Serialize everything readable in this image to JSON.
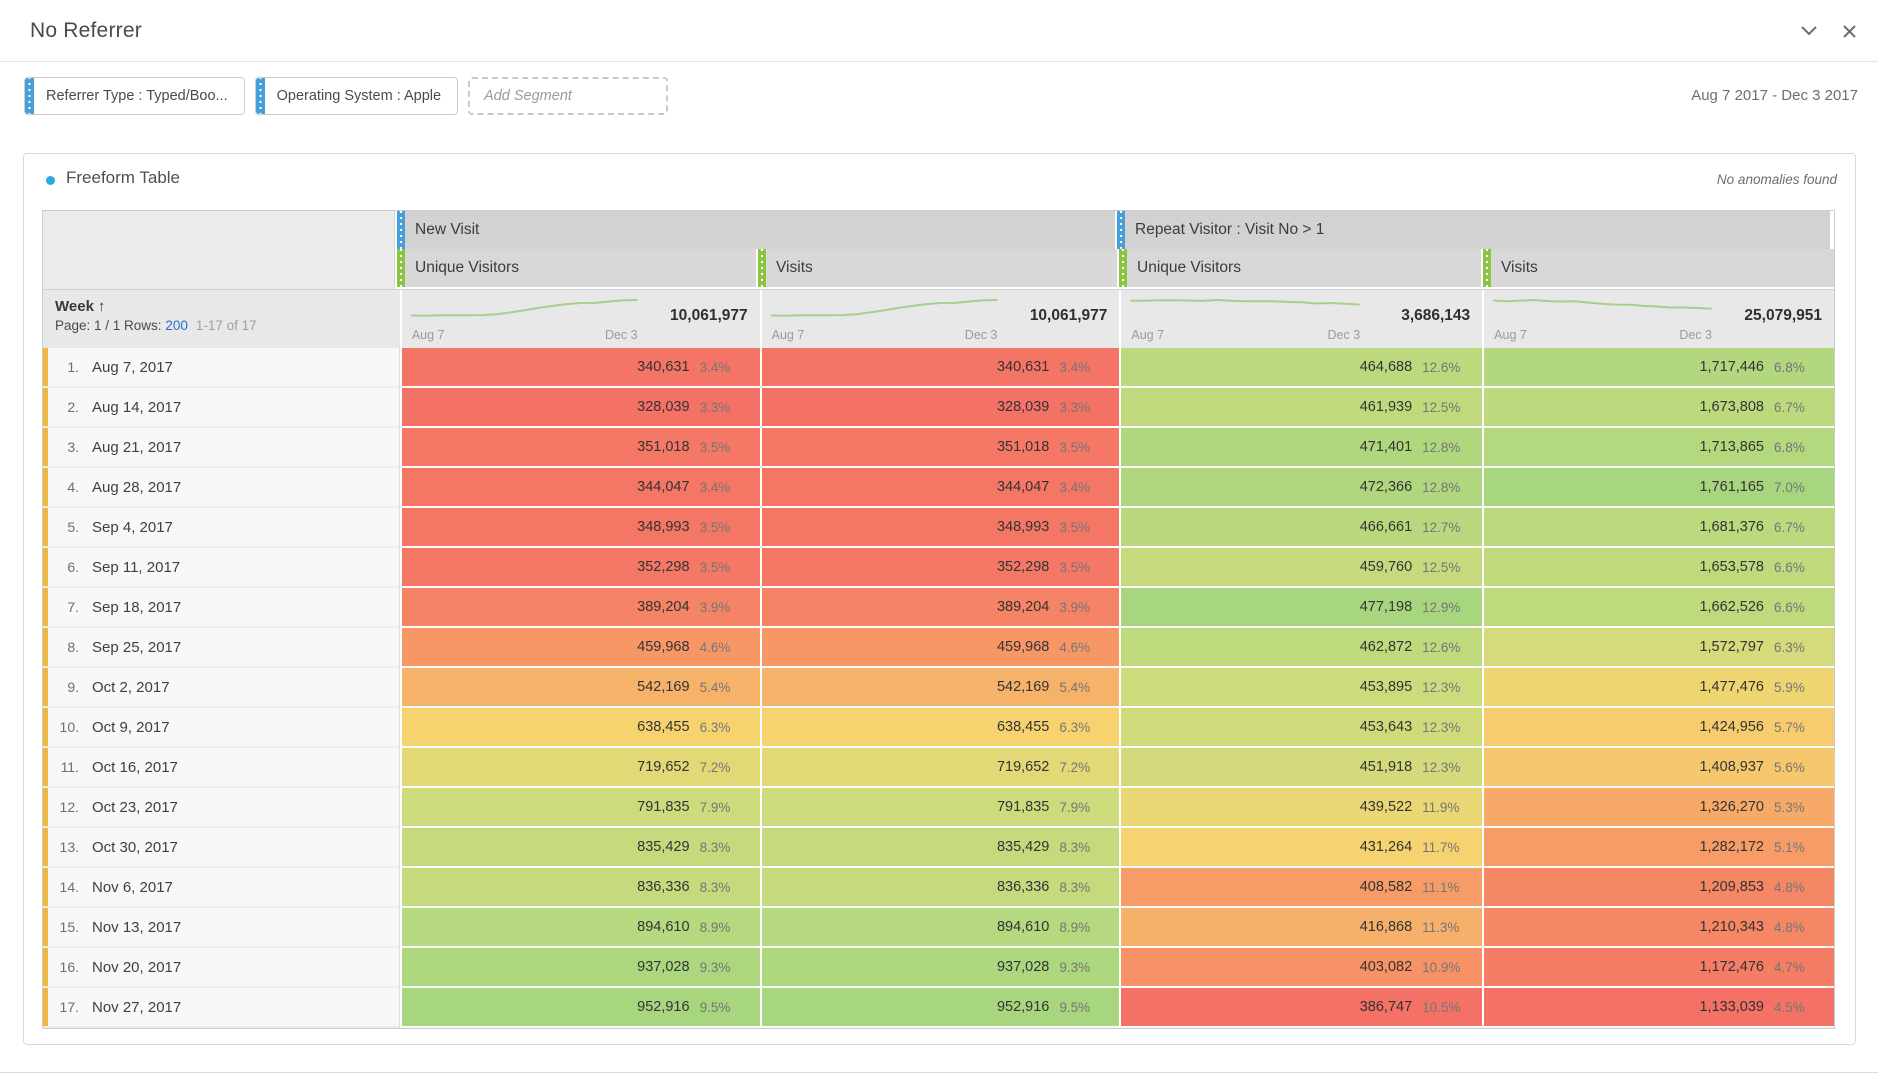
{
  "window": {
    "title": "No Referrer",
    "date_range": "Aug 7 2017 - Dec 3 2017"
  },
  "segments": {
    "chips": [
      {
        "label": "Referrer Type : Typed/Boo..."
      },
      {
        "label": "Operating System : Apple"
      }
    ],
    "add_segment_placeholder": "Add Segment"
  },
  "panel": {
    "title": "Freeform Table",
    "anomalies_note": "No anomalies found"
  },
  "table": {
    "row_header": {
      "dimension": "Week",
      "sort_arrow": "↑",
      "page_prefix": "Page: 1 / 1 Rows:",
      "rows_value": "200",
      "range": "1-17 of 17"
    },
    "groups": [
      {
        "label": "New Visit",
        "span": 2
      },
      {
        "label": "Repeat Visitor : Visit No > 1",
        "span": 2
      }
    ],
    "columns": [
      {
        "label": "Unique Visitors",
        "total": "10,061,977",
        "axis_start": "Aug 7",
        "axis_end": "Dec 3"
      },
      {
        "label": "Visits",
        "total": "10,061,977",
        "axis_start": "Aug 7",
        "axis_end": "Dec 3"
      },
      {
        "label": "Unique Visitors",
        "total": "3,686,143",
        "axis_start": "Aug 7",
        "axis_end": "Dec 3"
      },
      {
        "label": "Visits",
        "total": "25,079,951",
        "axis_start": "Aug 7",
        "axis_end": "Dec 3"
      }
    ],
    "rows": [
      {
        "index": "1.",
        "date": "Aug 7, 2017",
        "cells": [
          {
            "value": "340,631",
            "pct": "3.4%"
          },
          {
            "value": "340,631",
            "pct": "3.4%"
          },
          {
            "value": "464,688",
            "pct": "12.6%"
          },
          {
            "value": "1,717,446",
            "pct": "6.8%"
          }
        ]
      },
      {
        "index": "2.",
        "date": "Aug 14, 2017",
        "cells": [
          {
            "value": "328,039",
            "pct": "3.3%"
          },
          {
            "value": "328,039",
            "pct": "3.3%"
          },
          {
            "value": "461,939",
            "pct": "12.5%"
          },
          {
            "value": "1,673,808",
            "pct": "6.7%"
          }
        ]
      },
      {
        "index": "3.",
        "date": "Aug 21, 2017",
        "cells": [
          {
            "value": "351,018",
            "pct": "3.5%"
          },
          {
            "value": "351,018",
            "pct": "3.5%"
          },
          {
            "value": "471,401",
            "pct": "12.8%"
          },
          {
            "value": "1,713,865",
            "pct": "6.8%"
          }
        ]
      },
      {
        "index": "4.",
        "date": "Aug 28, 2017",
        "cells": [
          {
            "value": "344,047",
            "pct": "3.4%"
          },
          {
            "value": "344,047",
            "pct": "3.4%"
          },
          {
            "value": "472,366",
            "pct": "12.8%"
          },
          {
            "value": "1,761,165",
            "pct": "7.0%"
          }
        ]
      },
      {
        "index": "5.",
        "date": "Sep 4, 2017",
        "cells": [
          {
            "value": "348,993",
            "pct": "3.5%"
          },
          {
            "value": "348,993",
            "pct": "3.5%"
          },
          {
            "value": "466,661",
            "pct": "12.7%"
          },
          {
            "value": "1,681,376",
            "pct": "6.7%"
          }
        ]
      },
      {
        "index": "6.",
        "date": "Sep 11, 2017",
        "cells": [
          {
            "value": "352,298",
            "pct": "3.5%"
          },
          {
            "value": "352,298",
            "pct": "3.5%"
          },
          {
            "value": "459,760",
            "pct": "12.5%"
          },
          {
            "value": "1,653,578",
            "pct": "6.6%"
          }
        ]
      },
      {
        "index": "7.",
        "date": "Sep 18, 2017",
        "cells": [
          {
            "value": "389,204",
            "pct": "3.9%"
          },
          {
            "value": "389,204",
            "pct": "3.9%"
          },
          {
            "value": "477,198",
            "pct": "12.9%"
          },
          {
            "value": "1,662,526",
            "pct": "6.6%"
          }
        ]
      },
      {
        "index": "8.",
        "date": "Sep 25, 2017",
        "cells": [
          {
            "value": "459,968",
            "pct": "4.6%"
          },
          {
            "value": "459,968",
            "pct": "4.6%"
          },
          {
            "value": "462,872",
            "pct": "12.6%"
          },
          {
            "value": "1,572,797",
            "pct": "6.3%"
          }
        ]
      },
      {
        "index": "9.",
        "date": "Oct 2, 2017",
        "cells": [
          {
            "value": "542,169",
            "pct": "5.4%"
          },
          {
            "value": "542,169",
            "pct": "5.4%"
          },
          {
            "value": "453,895",
            "pct": "12.3%"
          },
          {
            "value": "1,477,476",
            "pct": "5.9%"
          }
        ]
      },
      {
        "index": "10.",
        "date": "Oct 9, 2017",
        "cells": [
          {
            "value": "638,455",
            "pct": "6.3%"
          },
          {
            "value": "638,455",
            "pct": "6.3%"
          },
          {
            "value": "453,643",
            "pct": "12.3%"
          },
          {
            "value": "1,424,956",
            "pct": "5.7%"
          }
        ]
      },
      {
        "index": "11.",
        "date": "Oct 16, 2017",
        "cells": [
          {
            "value": "719,652",
            "pct": "7.2%"
          },
          {
            "value": "719,652",
            "pct": "7.2%"
          },
          {
            "value": "451,918",
            "pct": "12.3%"
          },
          {
            "value": "1,408,937",
            "pct": "5.6%"
          }
        ]
      },
      {
        "index": "12.",
        "date": "Oct 23, 2017",
        "cells": [
          {
            "value": "791,835",
            "pct": "7.9%"
          },
          {
            "value": "791,835",
            "pct": "7.9%"
          },
          {
            "value": "439,522",
            "pct": "11.9%"
          },
          {
            "value": "1,326,270",
            "pct": "5.3%"
          }
        ]
      },
      {
        "index": "13.",
        "date": "Oct 30, 2017",
        "cells": [
          {
            "value": "835,429",
            "pct": "8.3%"
          },
          {
            "value": "835,429",
            "pct": "8.3%"
          },
          {
            "value": "431,264",
            "pct": "11.7%"
          },
          {
            "value": "1,282,172",
            "pct": "5.1%"
          }
        ]
      },
      {
        "index": "14.",
        "date": "Nov 6, 2017",
        "cells": [
          {
            "value": "836,336",
            "pct": "8.3%"
          },
          {
            "value": "836,336",
            "pct": "8.3%"
          },
          {
            "value": "408,582",
            "pct": "11.1%"
          },
          {
            "value": "1,209,853",
            "pct": "4.8%"
          }
        ]
      },
      {
        "index": "15.",
        "date": "Nov 13, 2017",
        "cells": [
          {
            "value": "894,610",
            "pct": "8.9%"
          },
          {
            "value": "894,610",
            "pct": "8.9%"
          },
          {
            "value": "416,868",
            "pct": "11.3%"
          },
          {
            "value": "1,210,343",
            "pct": "4.8%"
          }
        ]
      },
      {
        "index": "16.",
        "date": "Nov 20, 2017",
        "cells": [
          {
            "value": "937,028",
            "pct": "9.3%"
          },
          {
            "value": "937,028",
            "pct": "9.3%"
          },
          {
            "value": "403,082",
            "pct": "10.9%"
          },
          {
            "value": "1,172,476",
            "pct": "4.7%"
          }
        ]
      },
      {
        "index": "17.",
        "date": "Nov 27, 2017",
        "cells": [
          {
            "value": "952,916",
            "pct": "9.5%"
          },
          {
            "value": "952,916",
            "pct": "9.5%"
          },
          {
            "value": "386,747",
            "pct": "10.5%"
          },
          {
            "value": "1,133,039",
            "pct": "4.5%"
          }
        ]
      }
    ]
  },
  "colors": {
    "segment_blue": "#459fd8",
    "metric_green": "#8ac440",
    "dimension_yellow": "#efb73c",
    "link_blue": "#2a6fc9",
    "sparkline_green": "#a9cf8e",
    "freeform_dot": "#29abe2",
    "heatmap_stops": [
      "#f47165",
      "#f79e66",
      "#f7d470",
      "#cddb7c",
      "#a8d67f"
    ]
  }
}
